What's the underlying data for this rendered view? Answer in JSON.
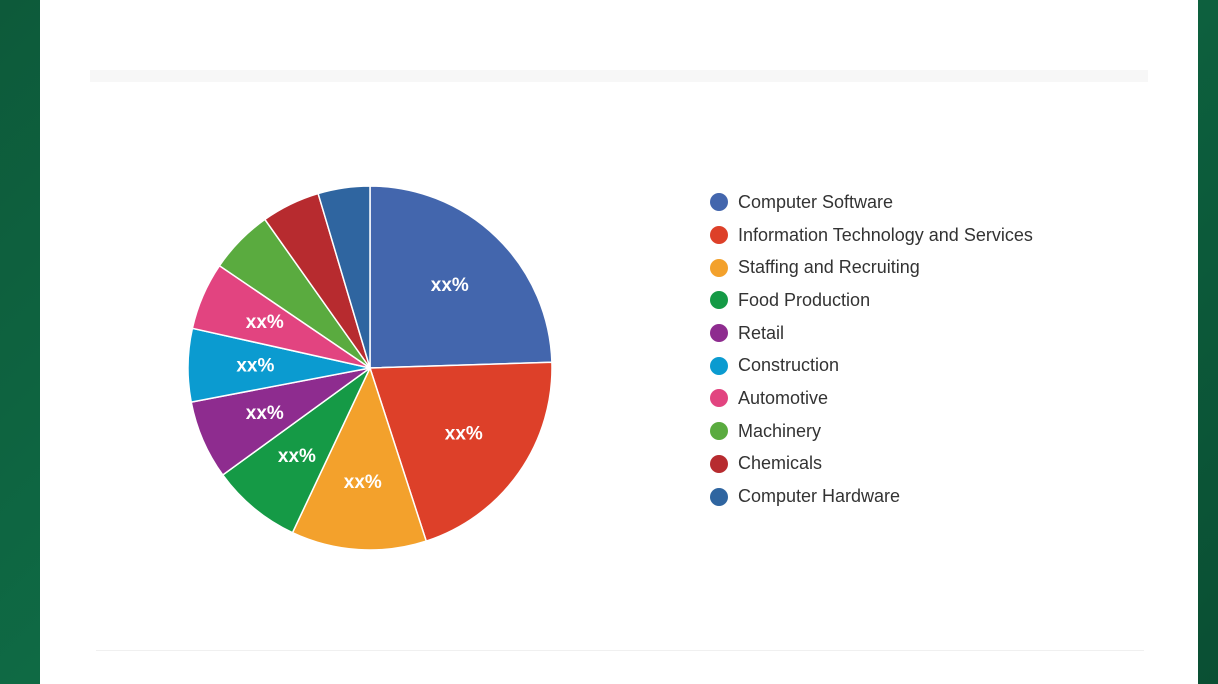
{
  "chart_data": {
    "type": "pie",
    "title": "",
    "legend_position": "right",
    "slices": [
      {
        "name": "Computer Software",
        "value": 24.5,
        "label": "xx%",
        "color": "#4366ad"
      },
      {
        "name": "Information Technology and Services",
        "value": 20.5,
        "label": "xx%",
        "color": "#dd4029"
      },
      {
        "name": "Staffing and Recruiting",
        "value": 12.0,
        "label": "xx%",
        "color": "#f3a12c"
      },
      {
        "name": "Food Production",
        "value": 8.0,
        "label": "xx%",
        "color": "#159a46"
      },
      {
        "name": "Retail",
        "value": 7.0,
        "label": "xx%",
        "color": "#8e2c8f"
      },
      {
        "name": "Construction",
        "value": 6.5,
        "label": "xx%",
        "color": "#0b9bd0"
      },
      {
        "name": "Automotive",
        "value": 6.0,
        "label": "xx%",
        "color": "#e24480"
      },
      {
        "name": "Machinery",
        "value": 5.7,
        "label": "",
        "color": "#5aab3f"
      },
      {
        "name": "Chemicals",
        "value": 5.2,
        "label": "",
        "color": "#b72b2f"
      },
      {
        "name": "Computer Hardware",
        "value": 4.6,
        "label": "",
        "color": "#2f65a0"
      }
    ]
  }
}
